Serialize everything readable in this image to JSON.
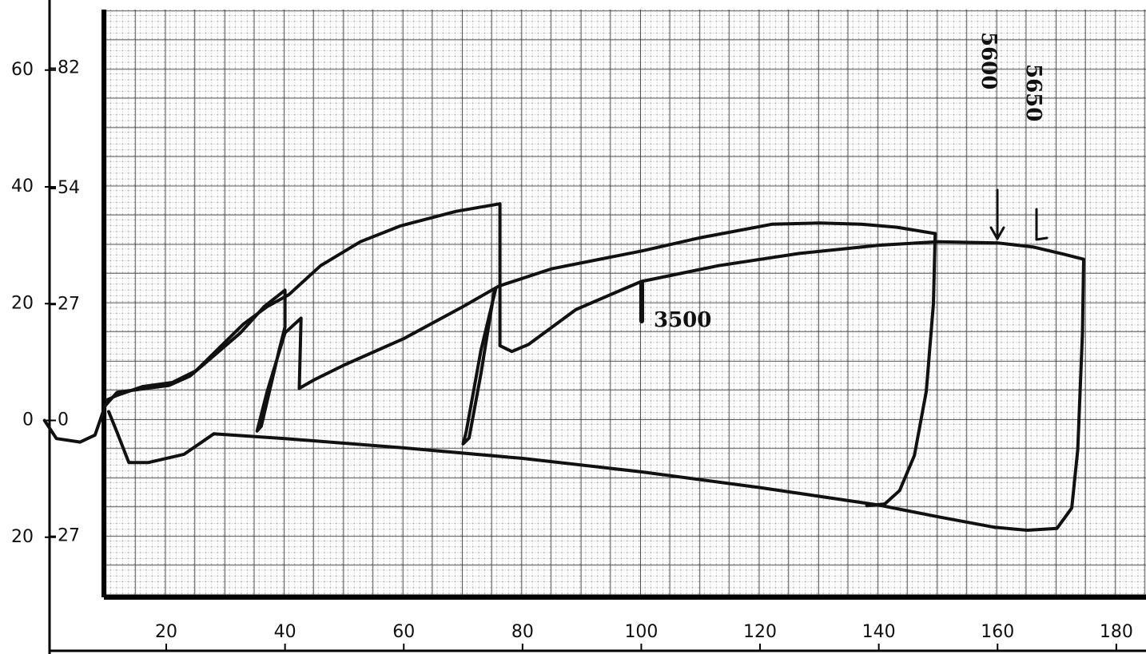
{
  "chart_data": {
    "type": "line",
    "xlim": [
      -8,
      185
    ],
    "xticks": [
      20,
      40,
      60,
      80,
      100,
      120,
      140,
      160,
      180
    ],
    "ylim": [
      -40,
      72
    ],
    "yticks": [
      {
        "value": -20,
        "label": "20"
      },
      0,
      20,
      40,
      60
    ],
    "y2lim": [
      -54.4,
      97.9
    ],
    "y2ticks": [
      {
        "value": -27,
        "label": "27"
      },
      0,
      27,
      54,
      82
    ],
    "annotations": [
      "3500",
      "5600",
      "5650"
    ],
    "series": [
      {
        "color": "#111111",
        "x": [
          -0.5,
          1.5,
          5.5,
          8,
          9.7,
          11.7,
          16,
          20.5,
          24,
          28.5,
          32.5,
          36.5,
          40,
          40,
          39,
          36,
          35.3,
          37,
          40,
          42.7,
          42.4,
          45,
          50,
          60,
          70,
          76,
          85,
          100,
          110,
          122,
          130,
          137,
          143,
          149.5,
          149.2,
          148,
          146,
          143.5,
          141,
          138
        ],
        "values": [
          0,
          -3.1,
          -3.7,
          -2.5,
          2.5,
          4.8,
          5.4,
          6,
          7.6,
          11.5,
          15,
          19.5,
          22.3,
          16,
          12,
          -1,
          -1.8,
          5,
          15,
          17.5,
          5.5,
          7,
          9.5,
          14,
          19.5,
          23,
          26,
          29,
          31.3,
          33.6,
          33.8,
          33.6,
          33.1,
          32,
          20,
          5,
          -6,
          -12,
          -14.3,
          -14.6
        ]
      },
      {
        "color": "#111111",
        "x": [
          10,
          11.7,
          16,
          21,
          25,
          29,
          33,
          37,
          40.6,
          46,
          52.7,
          59.4,
          68.8,
          76.2,
          76.2,
          78.2,
          81,
          89,
          100,
          113,
          126.6,
          140,
          150,
          160,
          166,
          171,
          174.5,
          174.3,
          173.5,
          172.5,
          170,
          165,
          159.5
        ],
        "values": [
          3.5,
          4.3,
          5.8,
          6.5,
          8.5,
          12.5,
          16.5,
          19.5,
          21.5,
          26.5,
          30.6,
          33.3,
          35.8,
          37.1,
          12.8,
          11.8,
          13,
          19,
          23.8,
          26.5,
          28.6,
          30,
          30.6,
          30.4,
          29.7,
          28.5,
          27.6,
          15,
          -5,
          -15,
          -18.5,
          -18.8,
          -18.3
        ]
      },
      {
        "color": "#111111",
        "x": [
          75.5,
          73,
          70.5,
          70,
          71,
          73,
          75.3
        ],
        "values": [
          22.6,
          12,
          -2,
          -4,
          -3,
          8,
          22.5
        ]
      },
      {
        "color": "#111111",
        "x": [
          159.5,
          150,
          140,
          120,
          100,
          80,
          60,
          40,
          28,
          23,
          17,
          13.7,
          11.7,
          10.3
        ],
        "values": [
          -18.3,
          -16.5,
          -14.5,
          -11.5,
          -8.8,
          -6.5,
          -4.7,
          -3.1,
          -2.3,
          -5.8,
          -7.2,
          -7.2,
          -2,
          1.5
        ]
      }
    ]
  }
}
